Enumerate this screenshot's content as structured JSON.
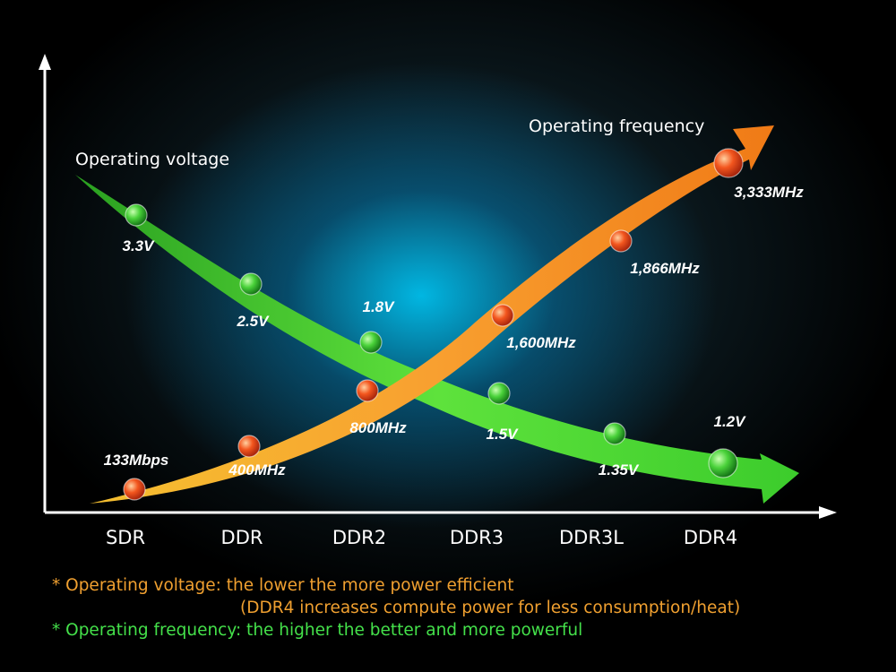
{
  "chart_data": {
    "type": "line",
    "categories": [
      "SDR",
      "DDR",
      "DDR2",
      "DDR3",
      "DDR3L",
      "DDR4"
    ],
    "series": [
      {
        "name": "Operating voltage",
        "color": "#3ccc2c",
        "points": [
          {
            "category": "SDR",
            "value": 3.3,
            "label": "3.3V"
          },
          {
            "category": "DDR",
            "value": 2.5,
            "label": "2.5V"
          },
          {
            "category": "DDR2",
            "value": 1.8,
            "label": "1.8V"
          },
          {
            "category": "DDR3",
            "value": 1.5,
            "label": "1.5V"
          },
          {
            "category": "DDR3L",
            "value": 1.35,
            "label": "1.35V"
          },
          {
            "category": "DDR4",
            "value": 1.2,
            "label": "1.2V"
          }
        ]
      },
      {
        "name": "Operating frequency",
        "color": "#f28a1e",
        "points": [
          {
            "category": "SDR",
            "value": 133,
            "label": "133Mbps"
          },
          {
            "category": "DDR",
            "value": 400,
            "label": "400MHz"
          },
          {
            "category": "DDR2",
            "value": 800,
            "label": "800MHz"
          },
          {
            "category": "DDR3",
            "value": 1600,
            "label": "1,600MHz"
          },
          {
            "category": "DDR3L",
            "value": 1866,
            "label": "1,866MHz"
          },
          {
            "category": "DDR4",
            "value": 3333,
            "label": "3,333MHz"
          }
        ]
      }
    ],
    "grid": false,
    "legend": "none"
  },
  "notes": {
    "line1": "* Operating voltage: the lower the more power efficient",
    "line1b": "(DDR4 increases compute power for less consumption/heat)",
    "line2": "* Operating frequency: the higher the better and more powerful"
  }
}
